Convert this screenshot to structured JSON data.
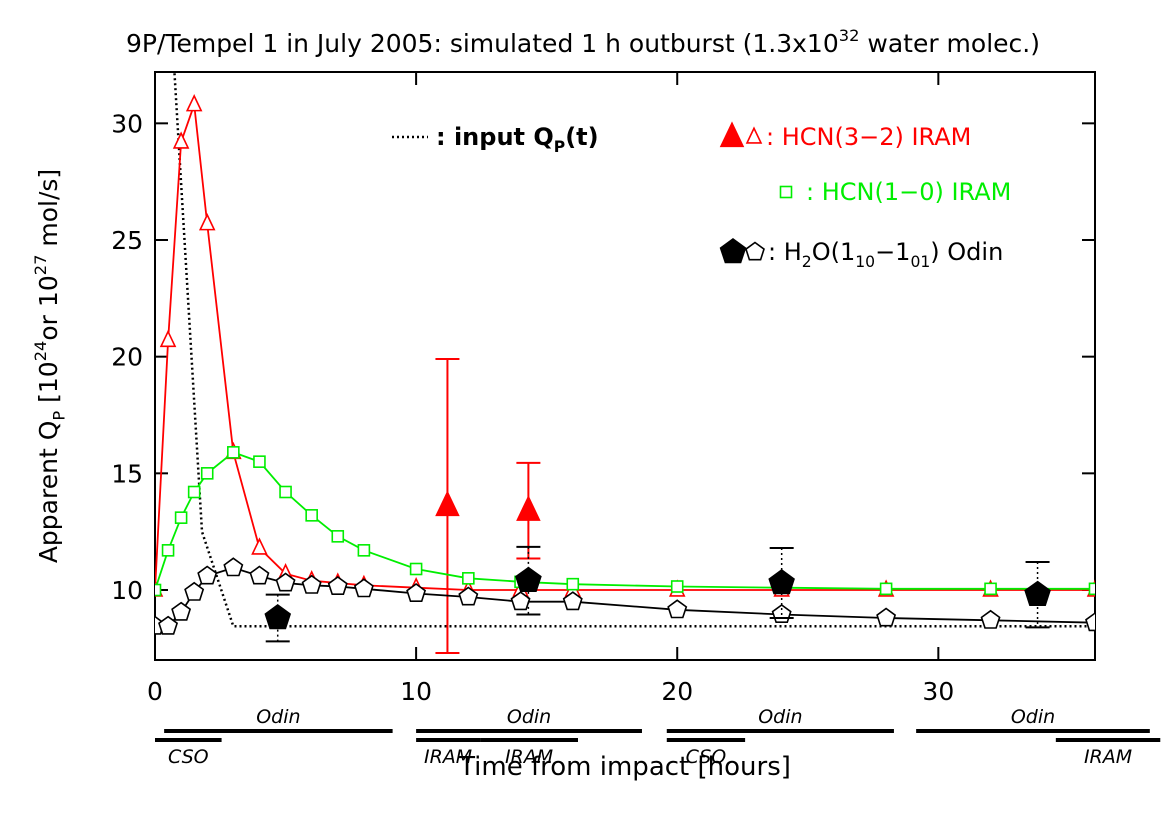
{
  "chart_data": {
    "type": "line",
    "title": [
      {
        "text": "9P/Tempel 1 in July 2005: simulated 1 h outburst (1.3x10"
      },
      {
        "sup": "32"
      },
      {
        "text": " water molec.)"
      }
    ],
    "xlabel": "Time from impact [hours]",
    "ylabel": [
      {
        "text": "Apparent Q"
      },
      {
        "sub": "P"
      },
      {
        "text": " [10"
      },
      {
        "sup": "24"
      },
      {
        "text": "or 10"
      },
      {
        "sup": "27"
      },
      {
        "text": " mol/s]"
      }
    ],
    "xlim": [
      0,
      36
    ],
    "ylim": [
      7,
      32.2
    ],
    "xticks": [
      0,
      10,
      20,
      30
    ],
    "yticks": [
      10,
      15,
      20,
      25,
      30
    ],
    "grid": false,
    "series": [
      {
        "name": [
          {
            "text": ": input Q"
          },
          {
            "sub": "P"
          },
          {
            "text": "(t)"
          }
        ],
        "color": "#000000",
        "line": "dotted",
        "x": [
          0.7,
          1.8,
          3,
          36
        ],
        "values": [
          33,
          12.5,
          8.45,
          8.45
        ]
      },
      {
        "name": [
          {
            "text": ": HCN(3−2) IRAM"
          }
        ],
        "color": "#ff0000",
        "line": "solid",
        "marker": "triangle",
        "x": [
          0,
          0.5,
          1,
          1.5,
          2,
          3,
          4,
          5,
          6,
          7,
          8,
          10,
          12,
          14,
          16,
          20,
          24,
          28,
          32,
          36
        ],
        "values": [
          10.0,
          20.7,
          29.2,
          30.8,
          25.7,
          15.9,
          11.8,
          10.7,
          10.4,
          10.3,
          10.2,
          10.1,
          10.0,
          10.0,
          10.0,
          10.0,
          10.0,
          10.0,
          10.0,
          10.0
        ],
        "obs": {
          "x": [
            11.2,
            14.3
          ],
          "values": [
            13.6,
            13.4
          ],
          "errors": [
            6.3,
            2.05
          ],
          "errorbar_line": "solid"
        }
      },
      {
        "name": [
          {
            "text": ": HCN(1−0) IRAM"
          }
        ],
        "color": "#00ee00",
        "line": "solid",
        "marker": "square",
        "x": [
          0,
          0.5,
          1,
          1.5,
          2,
          3,
          4,
          5,
          6,
          7,
          8,
          10,
          12,
          14,
          16,
          20,
          24,
          28,
          32,
          36
        ],
        "values": [
          10.0,
          11.7,
          13.1,
          14.2,
          15.0,
          15.9,
          15.5,
          14.2,
          13.2,
          12.3,
          11.7,
          10.9,
          10.5,
          10.35,
          10.25,
          10.15,
          10.1,
          10.05,
          10.05,
          10.05
        ]
      },
      {
        "name": [
          {
            "text": ": H"
          },
          {
            "sub": "2"
          },
          {
            "text": "O(1"
          },
          {
            "sub": "10"
          },
          {
            "text": "−1"
          },
          {
            "sub": "01"
          },
          {
            "text": ") Odin"
          }
        ],
        "color": "#000000",
        "line": "solid",
        "marker": "pentagon",
        "x": [
          0,
          0.5,
          1,
          1.5,
          2,
          3,
          4,
          5,
          6,
          7,
          8,
          10,
          12,
          14,
          16,
          20,
          24,
          28,
          32,
          36
        ],
        "values": [
          8.45,
          8.45,
          9.05,
          9.9,
          10.6,
          10.95,
          10.6,
          10.3,
          10.2,
          10.15,
          10.05,
          9.85,
          9.7,
          9.5,
          9.5,
          9.15,
          8.95,
          8.8,
          8.7,
          8.6
        ],
        "obs": {
          "x": [
            4.7,
            14.3,
            24,
            33.8
          ],
          "values": [
            8.8,
            10.4,
            10.3,
            9.8
          ],
          "errors": [
            1.0,
            1.45,
            1.5,
            1.4
          ],
          "errorbar_line": "dotted"
        }
      }
    ],
    "space_windows": [
      {
        "label": "Odin",
        "start": 0.35,
        "end": 9.1
      },
      {
        "label": "Odin",
        "start": 10,
        "end": 18.65
      },
      {
        "label": "Odin",
        "start": 19.6,
        "end": 28.3
      },
      {
        "label": "Odin",
        "start": 29.15,
        "end": 38.1
      }
    ],
    "ground_windows": [
      {
        "label": "CSO",
        "start": 0,
        "end": 2.55
      },
      {
        "label": "IRAM",
        "start": 10,
        "end": 12.45
      },
      {
        "label": "IRAM",
        "start": 12.45,
        "end": 16.2
      },
      {
        "label": "CSO",
        "start": 19.6,
        "end": 22.6
      },
      {
        "label": "IRAM",
        "start": 34.5,
        "end": 38.5
      }
    ]
  }
}
